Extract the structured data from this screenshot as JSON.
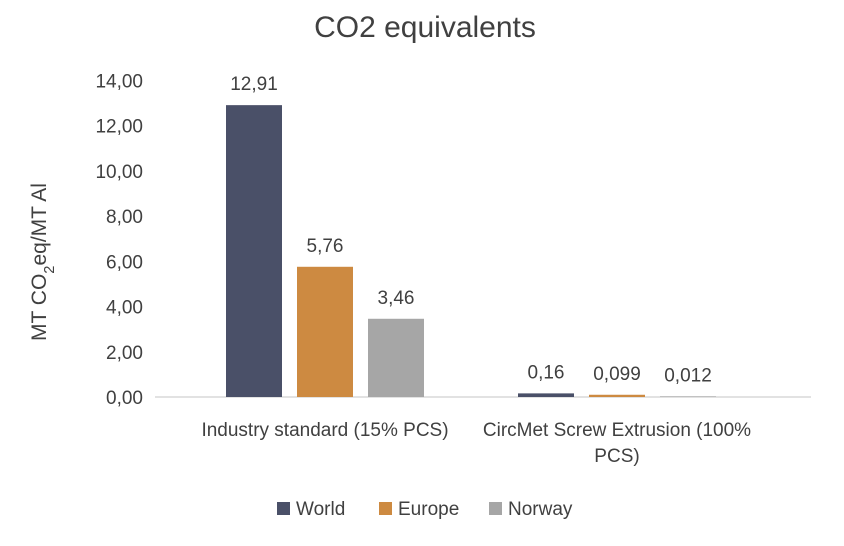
{
  "chart_data": {
    "type": "bar",
    "title": "CO2 equivalents",
    "ylabel": "MT CO2eq/MT Al",
    "xlabel": "",
    "categories": [
      [
        "Industry standard (15% PCS)"
      ],
      [
        "CircMet Screw Extrusion (100%",
        "PCS)"
      ]
    ],
    "series": [
      {
        "name": "World",
        "color": "#4a5068",
        "values": [
          12.91,
          0.16
        ],
        "labels": [
          "12,91",
          "0,16"
        ]
      },
      {
        "name": "Europe",
        "color": "#cd8a41",
        "values": [
          5.76,
          0.099
        ],
        "labels": [
          "5,76",
          "0,099"
        ]
      },
      {
        "name": "Norway",
        "color": "#a6a6a6",
        "values": [
          3.46,
          0.012
        ],
        "labels": [
          "3,46",
          "0,012"
        ]
      }
    ],
    "ylim": [
      0,
      14
    ],
    "yticks": [
      "0,00",
      "2,00",
      "4,00",
      "6,00",
      "8,00",
      "10,00",
      "12,00",
      "14,00"
    ],
    "grid": false,
    "legend_position": "bottom"
  }
}
